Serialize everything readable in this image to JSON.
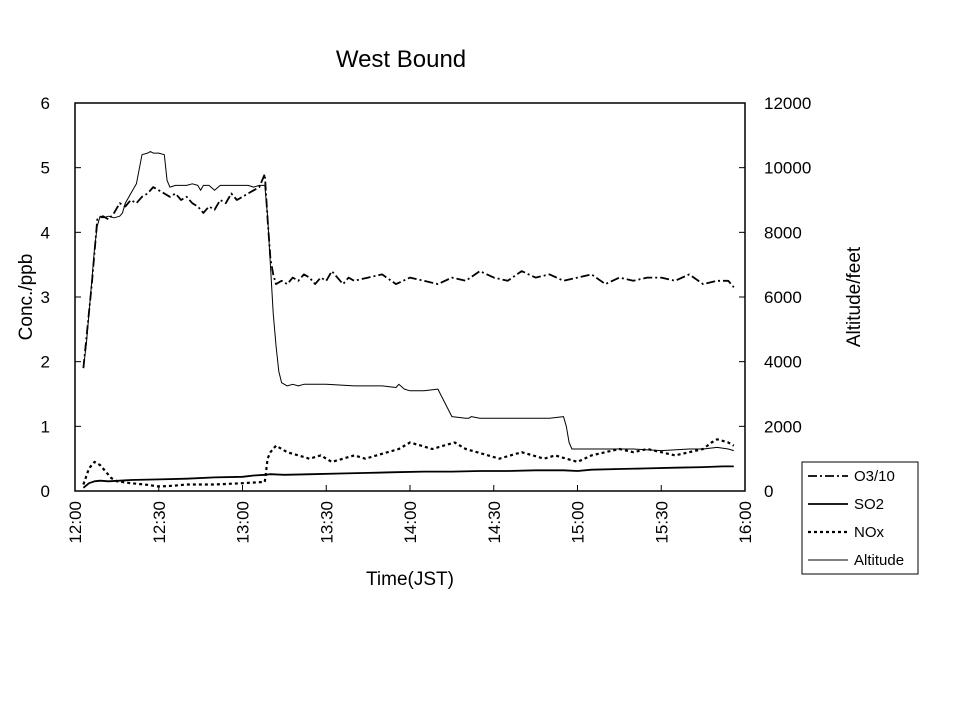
{
  "chart_data": {
    "type": "line",
    "title": "West Bound",
    "xlabel": "Time(JST)",
    "ylabel": "Conc./ppb",
    "y2label": "Altitude/feet",
    "x_ticks": [
      "12:00",
      "12:30",
      "13:00",
      "13:30",
      "14:00",
      "14:30",
      "15:00",
      "15:30",
      "16:00"
    ],
    "xlim_minutes": [
      0,
      240
    ],
    "ylim": [
      0,
      6
    ],
    "y_ticks": [
      "0",
      "1",
      "2",
      "3",
      "4",
      "5",
      "6"
    ],
    "y2lim": [
      0,
      12000
    ],
    "y2_ticks": [
      "0",
      "2000",
      "4000",
      "6000",
      "8000",
      "10000",
      "12000"
    ],
    "legend_position": "bottom-right outside",
    "series": [
      {
        "name": "O3/10",
        "axis": "left",
        "dash": "dashdot",
        "x_minutes": [
          3,
          6,
          8,
          10,
          12,
          14,
          16,
          18,
          20,
          22,
          24,
          26,
          28,
          30,
          32,
          34,
          36,
          38,
          40,
          42,
          44,
          46,
          48,
          50,
          52,
          54,
          56,
          58,
          60,
          62,
          64,
          66,
          68,
          69,
          70,
          71,
          72,
          74,
          76,
          78,
          80,
          82,
          84,
          86,
          88,
          90,
          92,
          94,
          96,
          98,
          100,
          105,
          110,
          115,
          120,
          125,
          130,
          135,
          140,
          145,
          150,
          155,
          160,
          165,
          170,
          175,
          180,
          185,
          190,
          195,
          200,
          205,
          210,
          215,
          220,
          225,
          230,
          234,
          236
        ],
        "values": [
          1.9,
          3.2,
          4.2,
          4.25,
          4.2,
          4.3,
          4.45,
          4.4,
          4.5,
          4.45,
          4.55,
          4.6,
          4.7,
          4.65,
          4.6,
          4.55,
          4.6,
          4.5,
          4.55,
          4.45,
          4.4,
          4.3,
          4.4,
          4.35,
          4.5,
          4.45,
          4.6,
          4.5,
          4.55,
          4.6,
          4.65,
          4.7,
          4.9,
          4.2,
          3.6,
          3.35,
          3.2,
          3.25,
          3.2,
          3.3,
          3.25,
          3.35,
          3.3,
          3.2,
          3.3,
          3.25,
          3.4,
          3.3,
          3.2,
          3.3,
          3.25,
          3.3,
          3.35,
          3.2,
          3.3,
          3.25,
          3.2,
          3.3,
          3.25,
          3.4,
          3.3,
          3.25,
          3.4,
          3.3,
          3.35,
          3.25,
          3.3,
          3.35,
          3.2,
          3.3,
          3.25,
          3.3,
          3.3,
          3.25,
          3.35,
          3.2,
          3.25,
          3.25,
          3.15
        ]
      },
      {
        "name": "SO2",
        "axis": "left",
        "dash": "solid",
        "x_minutes": [
          3,
          5,
          7,
          9,
          12,
          16,
          20,
          30,
          40,
          50,
          60,
          64,
          68,
          70,
          75,
          85,
          95,
          105,
          115,
          125,
          135,
          145,
          155,
          165,
          175,
          180,
          185,
          195,
          205,
          215,
          225,
          232,
          236
        ],
        "values": [
          0.05,
          0.12,
          0.15,
          0.16,
          0.15,
          0.16,
          0.17,
          0.18,
          0.19,
          0.21,
          0.22,
          0.24,
          0.25,
          0.26,
          0.25,
          0.26,
          0.27,
          0.28,
          0.29,
          0.3,
          0.3,
          0.31,
          0.31,
          0.32,
          0.32,
          0.31,
          0.33,
          0.34,
          0.35,
          0.36,
          0.37,
          0.38,
          0.38
        ]
      },
      {
        "name": "NOx",
        "axis": "left",
        "dash": "dotted",
        "x_minutes": [
          3,
          5,
          7,
          9,
          11,
          13,
          15,
          20,
          25,
          30,
          35,
          40,
          50,
          60,
          68,
          69,
          70,
          72,
          76,
          80,
          84,
          88,
          92,
          96,
          100,
          104,
          108,
          112,
          116,
          120,
          124,
          128,
          132,
          136,
          140,
          144,
          148,
          152,
          156,
          160,
          164,
          168,
          172,
          176,
          180,
          185,
          190,
          195,
          200,
          205,
          210,
          215,
          220,
          225,
          228,
          230,
          234,
          236
        ],
        "values": [
          0.1,
          0.35,
          0.45,
          0.4,
          0.3,
          0.2,
          0.15,
          0.12,
          0.1,
          0.07,
          0.08,
          0.1,
          0.1,
          0.12,
          0.14,
          0.5,
          0.6,
          0.7,
          0.6,
          0.55,
          0.5,
          0.55,
          0.45,
          0.5,
          0.55,
          0.5,
          0.55,
          0.6,
          0.65,
          0.75,
          0.7,
          0.65,
          0.7,
          0.75,
          0.65,
          0.6,
          0.55,
          0.5,
          0.55,
          0.6,
          0.55,
          0.5,
          0.55,
          0.5,
          0.45,
          0.55,
          0.6,
          0.65,
          0.6,
          0.65,
          0.6,
          0.55,
          0.6,
          0.65,
          0.75,
          0.8,
          0.75,
          0.7
        ]
      },
      {
        "name": "Altitude",
        "axis": "right",
        "dash": "thin-solid",
        "x_minutes": [
          3,
          4,
          5,
          6,
          7,
          8,
          9,
          10,
          12,
          14,
          16,
          17,
          18,
          20,
          22,
          24,
          26,
          27,
          28,
          30,
          32,
          33,
          34,
          36,
          38,
          40,
          42,
          44,
          45,
          46,
          48,
          50,
          52,
          54,
          56,
          58,
          60,
          62,
          64,
          66,
          68,
          69,
          70,
          71,
          72,
          73,
          74,
          76,
          78,
          80,
          82,
          84,
          90,
          100,
          110,
          115,
          116,
          118,
          120,
          125,
          130,
          135,
          140,
          141,
          142,
          145,
          150,
          160,
          170,
          175,
          176,
          177,
          178,
          180,
          190,
          200,
          210,
          220,
          225,
          230,
          234,
          236
        ],
        "values": [
          3800,
          4500,
          5500,
          6500,
          7500,
          8200,
          8500,
          8450,
          8500,
          8450,
          8500,
          8600,
          8900,
          9200,
          9500,
          10400,
          10450,
          10500,
          10450,
          10450,
          10400,
          9600,
          9400,
          9450,
          9450,
          9450,
          9500,
          9450,
          9300,
          9450,
          9450,
          9300,
          9450,
          9450,
          9450,
          9450,
          9450,
          9450,
          9400,
          9450,
          9450,
          8500,
          7000,
          5500,
          4500,
          3700,
          3350,
          3250,
          3300,
          3250,
          3300,
          3300,
          3300,
          3250,
          3250,
          3200,
          3300,
          3150,
          3100,
          3100,
          3150,
          2300,
          2250,
          2250,
          2300,
          2250,
          2250,
          2250,
          2250,
          2300,
          2000,
          1500,
          1300,
          1300,
          1300,
          1300,
          1250,
          1300,
          1300,
          1350,
          1300,
          1250
        ]
      }
    ]
  }
}
